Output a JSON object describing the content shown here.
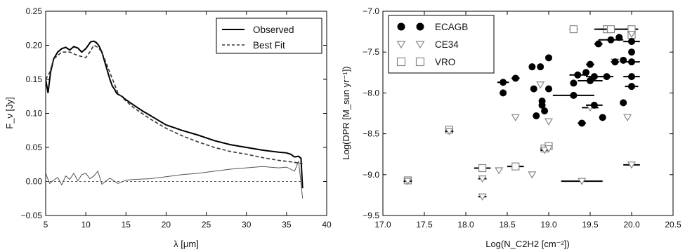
{
  "chart_data": [
    {
      "type": "line",
      "xlabel": "λ [μm]",
      "ylabel": "F_ν [Jy]",
      "xlim": [
        5,
        40
      ],
      "ylim": [
        -0.05,
        0.25
      ],
      "xticks": [
        "5",
        "10",
        "15",
        "20",
        "25",
        "30",
        "35",
        "40"
      ],
      "yticks": [
        "−0.05",
        "0.00",
        "0.05",
        "0.10",
        "0.15",
        "0.20",
        "0.25"
      ],
      "legend": {
        "position": "top-right",
        "entries": [
          "Observed",
          "Best Fit"
        ]
      },
      "grid": false,
      "series": [
        {
          "name": "Observed",
          "style": "solid",
          "color": "#000000",
          "x": [
            5.0,
            5.3,
            5.6,
            6.0,
            6.5,
            7.0,
            7.5,
            8.0,
            8.5,
            9.0,
            9.5,
            10.0,
            10.3,
            10.6,
            11.0,
            11.3,
            11.6,
            12.0,
            12.5,
            13.0,
            13.3,
            13.6,
            13.8,
            14.0,
            14.5,
            15.0,
            16.0,
            17.0,
            18.0,
            19.0,
            20.0,
            22.0,
            24.0,
            26.0,
            28.0,
            30.0,
            32.0,
            34.0,
            35.0,
            35.5,
            36.0,
            36.5,
            36.8,
            37.0
          ],
          "y": [
            0.15,
            0.13,
            0.16,
            0.18,
            0.19,
            0.195,
            0.197,
            0.193,
            0.198,
            0.196,
            0.19,
            0.195,
            0.2,
            0.205,
            0.206,
            0.204,
            0.2,
            0.19,
            0.17,
            0.15,
            0.14,
            0.135,
            0.13,
            0.128,
            0.125,
            0.12,
            0.112,
            0.104,
            0.097,
            0.09,
            0.083,
            0.075,
            0.068,
            0.06,
            0.054,
            0.05,
            0.046,
            0.043,
            0.042,
            0.04,
            0.036,
            0.037,
            0.034,
            -0.01
          ]
        },
        {
          "name": "Best Fit",
          "style": "dashed",
          "color": "#333333",
          "x": [
            5.0,
            5.5,
            6.0,
            7.0,
            8.0,
            9.0,
            10.0,
            10.5,
            11.0,
            11.5,
            12.0,
            13.0,
            14.0,
            15.0,
            16.0,
            17.0,
            18.0,
            20.0,
            22.0,
            24.0,
            26.0,
            28.0,
            30.0,
            32.0,
            34.0,
            36.0,
            37.0
          ],
          "y": [
            0.15,
            0.16,
            0.18,
            0.19,
            0.19,
            0.185,
            0.182,
            0.19,
            0.2,
            0.197,
            0.19,
            0.16,
            0.13,
            0.118,
            0.108,
            0.1,
            0.092,
            0.078,
            0.067,
            0.058,
            0.05,
            0.044,
            0.04,
            0.035,
            0.031,
            0.028,
            0.026
          ]
        },
        {
          "name": "",
          "style": "residual",
          "color": "#555555",
          "x": [
            5.0,
            5.5,
            6.0,
            6.5,
            7.0,
            7.5,
            8.0,
            8.5,
            9.0,
            9.5,
            10.0,
            10.5,
            11.0,
            11.5,
            12.0,
            13.0,
            14.0,
            15.0,
            16.0,
            18.0,
            20.0,
            22.0,
            24.0,
            26.0,
            28.0,
            30.0,
            32.0,
            34.0,
            35.0,
            36.0,
            36.5,
            37.0
          ],
          "y": [
            0.012,
            -0.003,
            0.002,
            0.006,
            -0.005,
            0.008,
            0.003,
            0.012,
            0.001,
            0.01,
            0.012,
            0.004,
            0.008,
            0.015,
            -0.004,
            0.005,
            -0.003,
            0.002,
            0.003,
            0.004,
            0.007,
            0.01,
            0.012,
            0.015,
            0.018,
            0.02,
            0.022,
            0.02,
            0.021,
            0.015,
            0.03,
            -0.025
          ]
        },
        {
          "name": "",
          "style": "zero-line",
          "color": "#555555",
          "x": [
            5,
            37
          ],
          "y": [
            0,
            0
          ]
        }
      ]
    },
    {
      "type": "scatter",
      "xlabel": "Log(N_C2H2 [cm⁻²])",
      "ylabel": "Log(DPR [M_sun yr⁻¹])",
      "xlim": [
        17.0,
        20.5
      ],
      "ylim": [
        -9.5,
        -7.0
      ],
      "xticks": [
        "17.0",
        "17.5",
        "18.0",
        "18.5",
        "19.0",
        "19.5",
        "20.0",
        "20.5"
      ],
      "yticks": [
        "−9.5",
        "−9.0",
        "−8.5",
        "−8.0",
        "−7.5",
        "−7.0"
      ],
      "legend": {
        "position": "top-left",
        "entries": [
          "ECAGB",
          "CE34",
          "VRO"
        ]
      },
      "grid": false,
      "series": [
        {
          "name": "ECAGB",
          "marker": "filled-circle",
          "color": "#000000",
          "points": [
            {
              "x": 18.45,
              "y": -7.87,
              "xerr": 0.07
            },
            {
              "x": 18.45,
              "y": -8.0,
              "xerr": 0
            },
            {
              "x": 18.6,
              "y": -7.82,
              "xerr": 0.05
            },
            {
              "x": 18.8,
              "y": -7.68,
              "xerr": 0
            },
            {
              "x": 18.82,
              "y": -7.95,
              "xerr": 0
            },
            {
              "x": 18.85,
              "y": -8.28,
              "xerr": 0
            },
            {
              "x": 18.9,
              "y": -7.68,
              "xerr": 0
            },
            {
              "x": 18.92,
              "y": -8.1,
              "xerr": 0
            },
            {
              "x": 18.92,
              "y": -8.15,
              "xerr": 0
            },
            {
              "x": 18.95,
              "y": -8.22,
              "xerr": 0
            },
            {
              "x": 19.0,
              "y": -7.57,
              "xerr": 0
            },
            {
              "x": 19.0,
              "y": -7.95,
              "xerr": 0
            },
            {
              "x": 19.3,
              "y": -8.03,
              "xerr": 0.25
            },
            {
              "x": 19.3,
              "y": -7.88,
              "xerr": 0
            },
            {
              "x": 19.35,
              "y": -7.78,
              "xerr": 0.1
            },
            {
              "x": 19.4,
              "y": -8.37,
              "xerr": 0.05
            },
            {
              "x": 19.45,
              "y": -7.75,
              "xerr": 0
            },
            {
              "x": 19.5,
              "y": -7.85,
              "xerr": 0.15
            },
            {
              "x": 19.5,
              "y": -7.65,
              "xerr": 0.05
            },
            {
              "x": 19.55,
              "y": -7.8,
              "xerr": 0.1
            },
            {
              "x": 19.55,
              "y": -8.15,
              "xerr": 0.1
            },
            {
              "x": 19.6,
              "y": -7.4,
              "xerr": 0.05
            },
            {
              "x": 19.65,
              "y": -8.3,
              "xerr": 0
            },
            {
              "x": 19.7,
              "y": -7.8,
              "xerr": 0.08
            },
            {
              "x": 19.75,
              "y": -7.35,
              "xerr": 0.15
            },
            {
              "x": 19.8,
              "y": -7.62,
              "xerr": 0.05
            },
            {
              "x": 19.85,
              "y": -7.32,
              "xerr": 0
            },
            {
              "x": 19.9,
              "y": -7.6,
              "xerr": 0
            },
            {
              "x": 19.9,
              "y": -8.12,
              "xerr": 0
            },
            {
              "x": 20.0,
              "y": -7.5,
              "xerr": 0
            },
            {
              "x": 20.0,
              "y": -7.62,
              "xerr": 0.1
            },
            {
              "x": 20.0,
              "y": -7.8,
              "xerr": 0.1
            },
            {
              "x": 20.0,
              "y": -7.92,
              "xerr": 0.08
            },
            {
              "x": 20.0,
              "y": -7.37,
              "xerr": 0.1
            }
          ]
        },
        {
          "name": "CE34",
          "marker": "open-triangle-down",
          "color": "#888888",
          "points": [
            {
              "x": 17.3,
              "y": -9.08,
              "xerr": 0.05
            },
            {
              "x": 17.8,
              "y": -8.47,
              "xerr": 0.05
            },
            {
              "x": 18.2,
              "y": -9.05,
              "xerr": 0.05
            },
            {
              "x": 18.2,
              "y": -9.27,
              "xerr": 0.05
            },
            {
              "x": 18.4,
              "y": -8.95,
              "xerr": 0
            },
            {
              "x": 18.6,
              "y": -8.3,
              "xerr": 0
            },
            {
              "x": 18.8,
              "y": -9.0,
              "xerr": 0
            },
            {
              "x": 18.9,
              "y": -7.9,
              "xerr": 0
            },
            {
              "x": 18.95,
              "y": -8.7,
              "xerr": 0.05
            },
            {
              "x": 19.0,
              "y": -8.35,
              "xerr": 0
            },
            {
              "x": 19.0,
              "y": -8.68,
              "xerr": 0
            },
            {
              "x": 19.4,
              "y": -9.08,
              "xerr": 0.25
            },
            {
              "x": 19.5,
              "y": -8.18,
              "xerr": 0.1
            },
            {
              "x": 19.8,
              "y": -7.62,
              "xerr": 0
            },
            {
              "x": 19.95,
              "y": -8.3,
              "xerr": 0
            },
            {
              "x": 20.0,
              "y": -8.88,
              "xerr": 0.1
            },
            {
              "x": 20.0,
              "y": -7.28,
              "xerr": 0
            }
          ]
        },
        {
          "name": "VRO",
          "marker": "open-square",
          "color": "#888888",
          "points": [
            {
              "x": 17.3,
              "y": -9.07,
              "xerr": 0
            },
            {
              "x": 17.8,
              "y": -8.45,
              "xerr": 0
            },
            {
              "x": 18.2,
              "y": -8.92,
              "xerr": 0.1
            },
            {
              "x": 18.6,
              "y": -8.9,
              "xerr": 0.1
            },
            {
              "x": 18.95,
              "y": -8.68,
              "xerr": 0.05
            },
            {
              "x": 19.0,
              "y": -8.65,
              "xerr": 0
            },
            {
              "x": 19.3,
              "y": -7.22,
              "xerr": 0.05
            },
            {
              "x": 19.7,
              "y": -7.22,
              "xerr": 0.1
            },
            {
              "x": 19.75,
              "y": -7.22,
              "xerr": 0.2
            },
            {
              "x": 20.0,
              "y": -7.22,
              "xerr": 0.08
            },
            {
              "x": 20.0,
              "y": -7.29,
              "xerr": 0
            }
          ]
        }
      ]
    }
  ]
}
